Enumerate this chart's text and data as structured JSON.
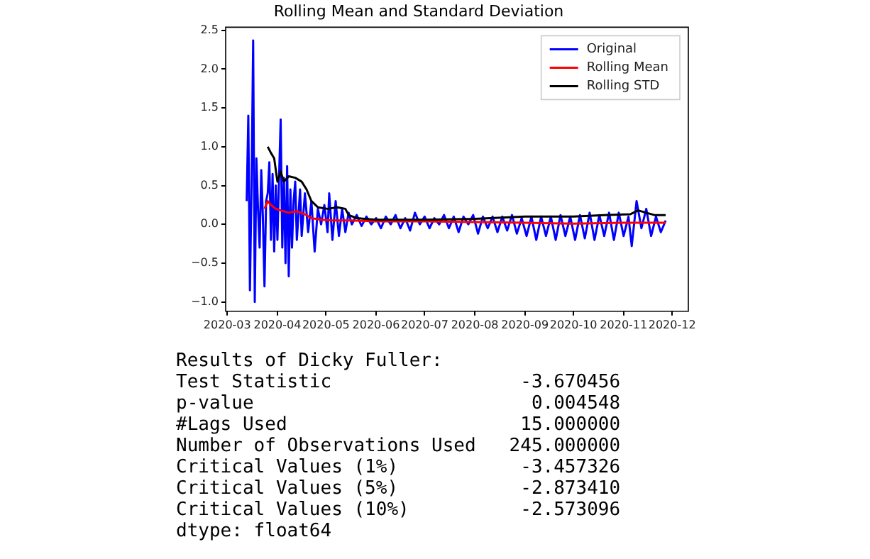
{
  "chart_data": {
    "type": "line",
    "title": "Rolling Mean and Standard Deviation",
    "xlim": [
      "2020-02-29",
      "2020-12-11"
    ],
    "xticks": [
      {
        "value": "2020-03-01",
        "label": "2020-03"
      },
      {
        "value": "2020-04-01",
        "label": "2020-04"
      },
      {
        "value": "2020-05-01",
        "label": "2020-05"
      },
      {
        "value": "2020-06-01",
        "label": "2020-06"
      },
      {
        "value": "2020-07-01",
        "label": "2020-07"
      },
      {
        "value": "2020-08-01",
        "label": "2020-08"
      },
      {
        "value": "2020-09-01",
        "label": "2020-09"
      },
      {
        "value": "2020-10-01",
        "label": "2020-10"
      },
      {
        "value": "2020-11-01",
        "label": "2020-11"
      },
      {
        "value": "2020-12-01",
        "label": "2020-12"
      }
    ],
    "ylim": [
      -1.12,
      2.54
    ],
    "yticks": [
      {
        "value": -1,
        "label": "−1.0"
      },
      {
        "value": -0.5,
        "label": "−0.5"
      },
      {
        "value": 0,
        "label": "0.0"
      },
      {
        "value": 0.5,
        "label": "0.5"
      },
      {
        "value": 1,
        "label": "1.0"
      },
      {
        "value": 1.5,
        "label": "1.5"
      },
      {
        "value": 2,
        "label": "2.0"
      },
      {
        "value": 2.5,
        "label": "2.5"
      }
    ],
    "grid": false,
    "legend": "top right",
    "marker": "none",
    "line_style": "solid",
    "series": [
      {
        "name": "Original",
        "color": "#0000ff",
        "x": [
          "2020-03-13",
          "2020-03-14",
          "2020-03-15",
          "2020-03-16",
          "2020-03-17",
          "2020-03-18",
          "2020-03-19",
          "2020-03-20",
          "2020-03-21",
          "2020-03-22",
          "2020-03-23",
          "2020-03-24",
          "2020-03-25",
          "2020-03-26",
          "2020-03-27",
          "2020-03-28",
          "2020-03-29",
          "2020-03-30",
          "2020-03-31",
          "2020-04-01",
          "2020-04-02",
          "2020-04-03",
          "2020-04-04",
          "2020-04-05",
          "2020-04-06",
          "2020-04-07",
          "2020-04-08",
          "2020-04-09",
          "2020-04-10",
          "2020-04-11",
          "2020-04-12",
          "2020-04-13",
          "2020-04-15",
          "2020-04-16",
          "2020-04-18",
          "2020-04-20",
          "2020-04-22",
          "2020-04-24",
          "2020-04-26",
          "2020-04-28",
          "2020-04-30",
          "2020-05-02",
          "2020-05-03",
          "2020-05-05",
          "2020-05-07",
          "2020-05-09",
          "2020-05-11",
          "2020-05-13",
          "2020-05-15",
          "2020-05-17",
          "2020-05-20",
          "2020-05-23",
          "2020-05-26",
          "2020-05-29",
          "2020-06-01",
          "2020-06-04",
          "2020-06-07",
          "2020-06-10",
          "2020-06-13",
          "2020-06-16",
          "2020-06-19",
          "2020-06-22",
          "2020-06-25",
          "2020-06-28",
          "2020-07-01",
          "2020-07-04",
          "2020-07-07",
          "2020-07-10",
          "2020-07-13",
          "2020-07-16",
          "2020-07-19",
          "2020-07-22",
          "2020-07-25",
          "2020-07-28",
          "2020-07-31",
          "2020-08-03",
          "2020-08-06",
          "2020-08-09",
          "2020-08-12",
          "2020-08-15",
          "2020-08-18",
          "2020-08-21",
          "2020-08-24",
          "2020-08-27",
          "2020-08-30",
          "2020-09-02",
          "2020-09-05",
          "2020-09-08",
          "2020-09-11",
          "2020-09-14",
          "2020-09-17",
          "2020-09-20",
          "2020-09-23",
          "2020-09-26",
          "2020-09-29",
          "2020-10-02",
          "2020-10-05",
          "2020-10-08",
          "2020-10-11",
          "2020-10-14",
          "2020-10-17",
          "2020-10-20",
          "2020-10-23",
          "2020-10-26",
          "2020-10-29",
          "2020-11-01",
          "2020-11-04",
          "2020-11-06",
          "2020-11-09",
          "2020-11-12",
          "2020-11-15",
          "2020-11-18",
          "2020-11-21",
          "2020-11-24",
          "2020-11-27"
        ],
        "values": [
          0.3,
          1.4,
          -0.85,
          0.5,
          2.37,
          -1.0,
          0.85,
          0.2,
          -0.3,
          0.7,
          0.1,
          -0.8,
          0.3,
          0.4,
          0.8,
          -0.2,
          0.65,
          -0.35,
          0.5,
          -0.2,
          0.6,
          1.35,
          -0.3,
          0.6,
          -0.5,
          0.75,
          -0.67,
          0.45,
          -0.3,
          0.3,
          0.55,
          -0.2,
          0.45,
          -0.15,
          0.4,
          -0.1,
          0.3,
          -0.35,
          0.2,
          0.0,
          0.25,
          -0.1,
          0.4,
          -0.2,
          0.3,
          -0.15,
          0.2,
          -0.1,
          0.15,
          0.0,
          0.12,
          -0.02,
          0.1,
          0.0,
          0.08,
          -0.05,
          0.1,
          0.0,
          0.12,
          -0.05,
          0.08,
          -0.08,
          0.15,
          0.0,
          0.1,
          -0.05,
          0.08,
          0.0,
          0.12,
          -0.05,
          0.1,
          -0.1,
          0.1,
          0.0,
          0.12,
          -0.12,
          0.1,
          -0.05,
          0.1,
          -0.1,
          0.1,
          -0.08,
          0.12,
          -0.12,
          0.08,
          -0.15,
          0.1,
          -0.2,
          0.1,
          -0.15,
          0.1,
          -0.2,
          0.12,
          -0.15,
          0.1,
          -0.2,
          0.12,
          -0.18,
          0.15,
          -0.2,
          0.12,
          -0.15,
          0.15,
          -0.2,
          0.15,
          -0.15,
          0.1,
          -0.28,
          0.3,
          -0.05,
          0.2,
          -0.15,
          0.1,
          -0.1,
          0.05
        ]
      },
      {
        "name": "Rolling Mean",
        "color": "#ff0000",
        "x": [
          "2020-03-24",
          "2020-03-26",
          "2020-03-28",
          "2020-03-31",
          "2020-04-03",
          "2020-04-08",
          "2020-04-13",
          "2020-04-18",
          "2020-04-22",
          "2020-04-28",
          "2020-05-05",
          "2020-05-15",
          "2020-06-01",
          "2020-07-01",
          "2020-08-01",
          "2020-09-01",
          "2020-10-01",
          "2020-11-01",
          "2020-11-27"
        ],
        "values": [
          0.2,
          0.3,
          0.25,
          0.2,
          0.18,
          0.15,
          0.17,
          0.13,
          0.08,
          0.06,
          0.05,
          0.05,
          0.04,
          0.04,
          0.03,
          0.02,
          0.01,
          0.02,
          0.02
        ]
      },
      {
        "name": "Rolling STD",
        "color": "#000000",
        "x": [
          "2020-03-26",
          "2020-03-28",
          "2020-03-30",
          "2020-04-01",
          "2020-04-03",
          "2020-04-05",
          "2020-04-08",
          "2020-04-12",
          "2020-04-16",
          "2020-04-19",
          "2020-04-22",
          "2020-04-26",
          "2020-05-02",
          "2020-05-08",
          "2020-05-13",
          "2020-05-15",
          "2020-05-20",
          "2020-06-01",
          "2020-07-01",
          "2020-08-01",
          "2020-09-01",
          "2020-10-01",
          "2020-10-20",
          "2020-11-05",
          "2020-11-10",
          "2020-11-20",
          "2020-11-27"
        ],
        "values": [
          1.0,
          0.92,
          0.85,
          0.55,
          0.68,
          0.55,
          0.62,
          0.6,
          0.55,
          0.45,
          0.3,
          0.22,
          0.2,
          0.22,
          0.2,
          0.12,
          0.08,
          0.06,
          0.06,
          0.07,
          0.1,
          0.1,
          0.12,
          0.13,
          0.18,
          0.12,
          0.12
        ]
      }
    ],
    "annotations": [
      "Results of Dicky Fuller:",
      "Test Statistic                 -3.670456",
      "p-value                         0.004548",
      "#Lags Used                     15.000000",
      "Number of Observations Used   245.000000",
      "Critical Values (1%)           -3.457326",
      "Critical Values (5%)           -2.873410",
      "Critical Values (10%)          -2.573096",
      "dtype: float64"
    ]
  }
}
